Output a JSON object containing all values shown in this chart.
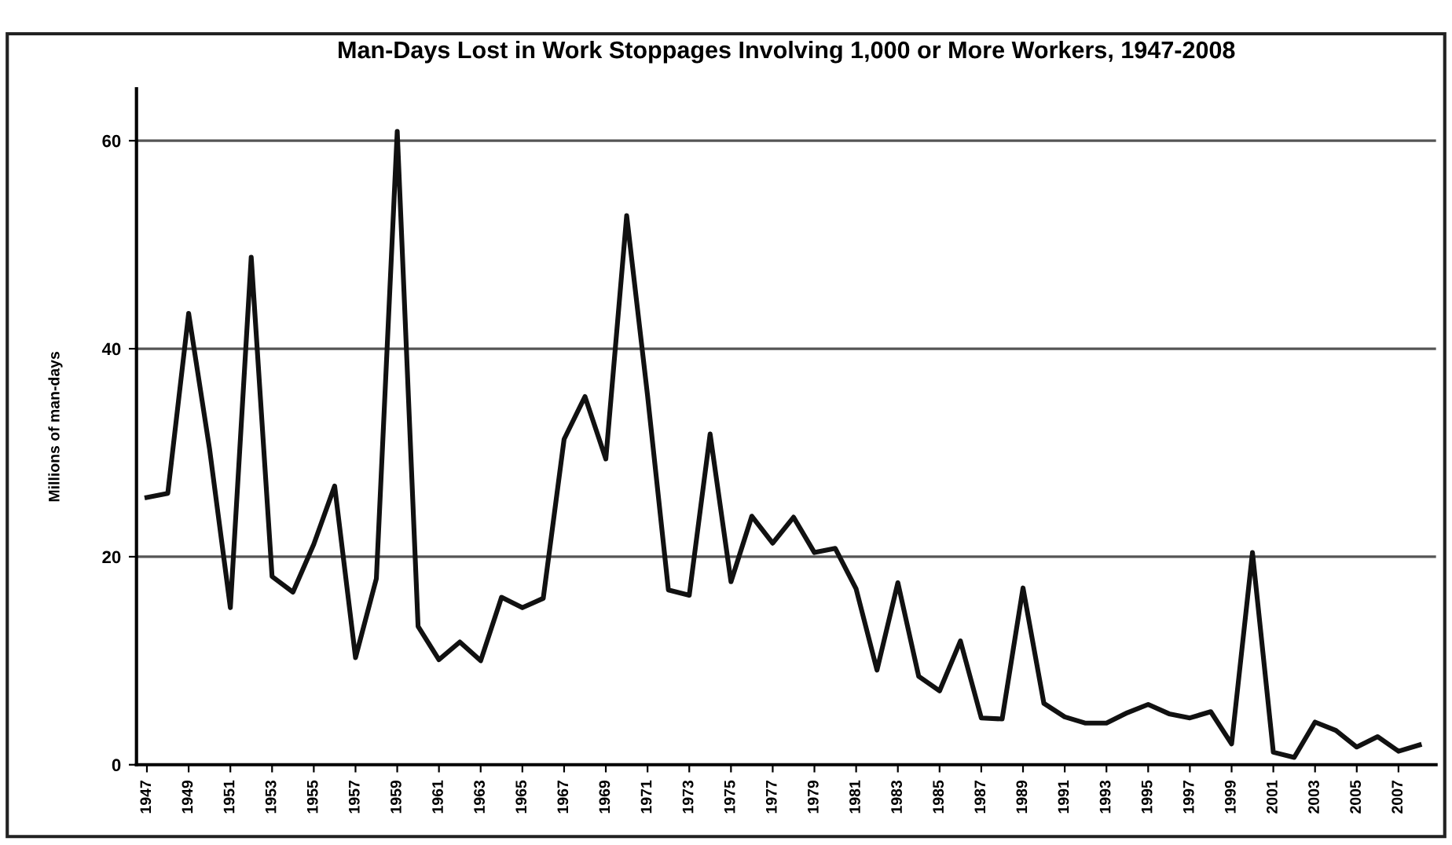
{
  "chart_data": {
    "type": "line",
    "title": "Man-Days Lost in Work Stoppages Involving 1,000 or More Workers, 1947-2008",
    "ylabel": "Millions of man-days",
    "x": [
      1947,
      1948,
      1949,
      1950,
      1951,
      1952,
      1953,
      1954,
      1955,
      1956,
      1957,
      1958,
      1959,
      1960,
      1961,
      1962,
      1963,
      1964,
      1965,
      1966,
      1967,
      1968,
      1969,
      1970,
      1971,
      1972,
      1973,
      1974,
      1975,
      1976,
      1977,
      1978,
      1979,
      1980,
      1981,
      1982,
      1983,
      1984,
      1985,
      1986,
      1987,
      1988,
      1989,
      1990,
      1991,
      1992,
      1993,
      1994,
      1995,
      1996,
      1997,
      1998,
      1999,
      2000,
      2001,
      2002,
      2003,
      2004,
      2005,
      2006,
      2007,
      2008
    ],
    "series": [
      {
        "color": "#111111",
        "values": [
          25.7,
          26.1,
          43.4,
          30.4,
          15.1,
          48.8,
          18.1,
          16.6,
          21.2,
          26.8,
          10.3,
          17.9,
          60.9,
          13.3,
          10.1,
          11.8,
          10.0,
          16.1,
          15.1,
          16.0,
          31.3,
          35.4,
          29.4,
          52.8,
          35.5,
          16.8,
          16.3,
          31.8,
          17.6,
          23.9,
          21.3,
          23.8,
          20.4,
          20.8,
          16.9,
          9.1,
          17.5,
          8.5,
          7.1,
          11.9,
          4.5,
          4.4,
          17.0,
          5.9,
          4.6,
          4.0,
          4.0,
          5.0,
          5.8,
          4.9,
          4.5,
          5.1,
          2.0,
          20.4,
          1.2,
          0.7,
          4.1,
          3.3,
          1.7,
          2.7,
          1.3,
          1.9
        ]
      }
    ],
    "xlim": [
      1946.5,
      2008.8
    ],
    "xticks": [
      1947,
      1949,
      1951,
      1953,
      1955,
      1957,
      1959,
      1961,
      1963,
      1965,
      1967,
      1969,
      1971,
      1973,
      1975,
      1977,
      1979,
      1981,
      1983,
      1985,
      1987,
      1989,
      1991,
      1993,
      1995,
      1997,
      1999,
      2001,
      2003,
      2005,
      2007
    ],
    "ylim": [
      0,
      65
    ],
    "yticks": [
      0,
      20,
      40,
      60
    ],
    "grid": "y",
    "marker": "none",
    "line_style": "solid",
    "legend": false
  }
}
